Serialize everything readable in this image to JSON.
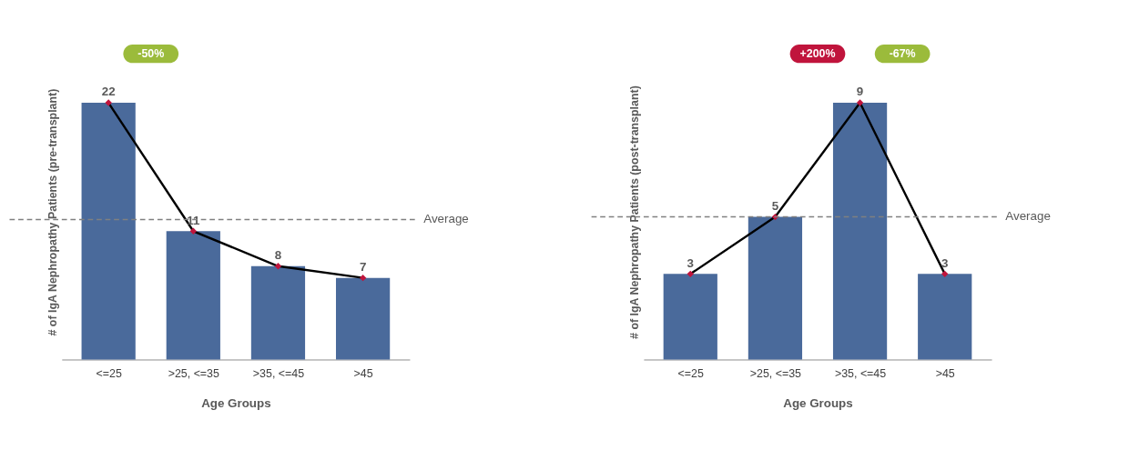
{
  "chart_data": [
    {
      "type": "bar",
      "categories": [
        "<=25",
        ">25, <=35",
        ">35, <=45",
        ">45"
      ],
      "xlabel": "Age Groups",
      "ylabel": "# of IgA Nephropathy Patients (pre-transplant)",
      "tick_labels": "x",
      "series": [
        {
          "color": "#4a6a9b",
          "values": [
            22,
            11,
            8,
            7
          ],
          "value_labels": [
            "22",
            "11",
            "8",
            "7"
          ]
        },
        {
          "type": "line",
          "color": "#000000",
          "marker": "diamond",
          "values": [
            22,
            11,
            8,
            7
          ]
        }
      ],
      "ref_lines": [
        {
          "axis": "y",
          "value": 12,
          "label": "Average",
          "line_style": "dashed",
          "color": "#808080"
        }
      ],
      "annotations": [
        "-50%"
      ]
    },
    {
      "type": "bar",
      "categories": [
        "<=25",
        ">25, <=35",
        ">35, <=45",
        ">45"
      ],
      "xlabel": "Age Groups",
      "ylabel": "# of IgA Nephropathy Patients (post-transplant)",
      "tick_labels": "x",
      "series": [
        {
          "color": "#4a6a9b",
          "values": [
            3,
            5,
            9,
            3
          ],
          "value_labels": [
            "3",
            "5",
            "9",
            "3"
          ]
        },
        {
          "type": "line",
          "color": "#000000",
          "marker": "diamond",
          "values": [
            3,
            5,
            9,
            3
          ]
        }
      ],
      "ref_lines": [
        {
          "axis": "y",
          "value": 5,
          "label": "Average",
          "line_style": "dashed",
          "color": "#808080"
        }
      ],
      "annotations": [
        "+200%",
        "-67%"
      ]
    }
  ]
}
